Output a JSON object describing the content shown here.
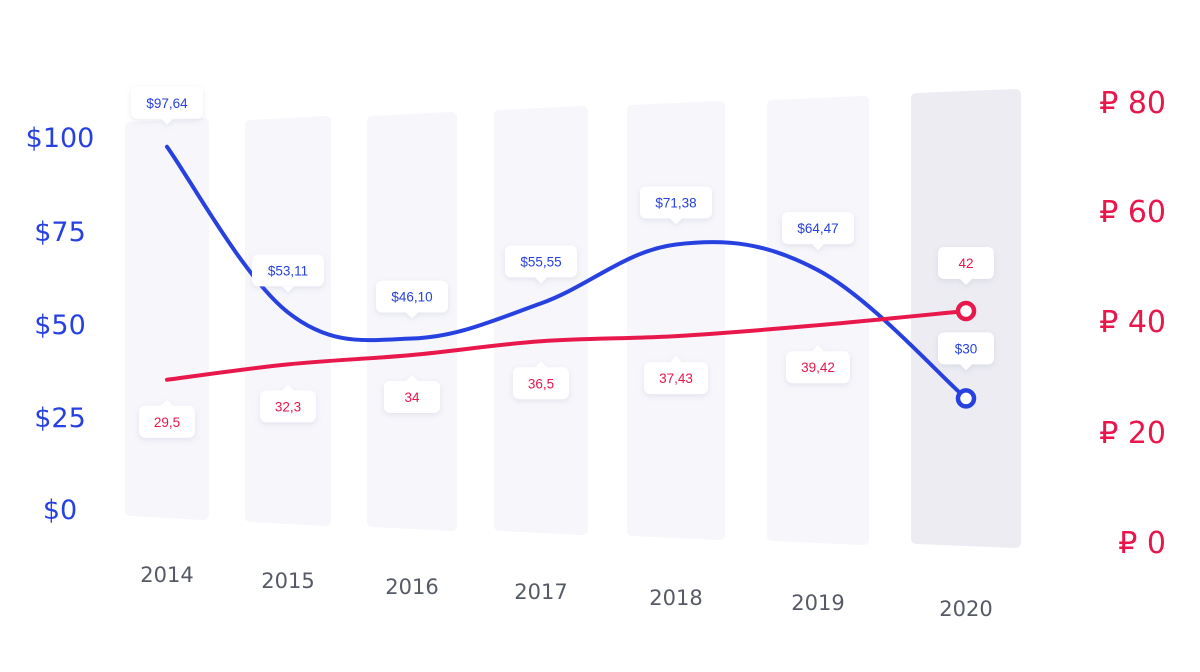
{
  "chart_data": {
    "type": "line",
    "categories": [
      "2014",
      "2015",
      "2016",
      "2017",
      "2018",
      "2019",
      "2020"
    ],
    "y_left": {
      "ticks": [
        "$0",
        "$25",
        "$50",
        "$75",
        "$100"
      ],
      "tick_values": [
        0,
        25,
        50,
        75,
        100
      ],
      "range": [
        0,
        100
      ],
      "color": "#2741e0"
    },
    "y_right": {
      "ticks": [
        "₽ 0",
        "₽ 20",
        "₽ 40",
        "₽ 60",
        "₽ 80"
      ],
      "tick_values": [
        0,
        20,
        40,
        60,
        80
      ],
      "range": [
        0,
        80
      ],
      "color": "#e8174c"
    },
    "series": [
      {
        "axis": "left",
        "color": "#2741e0",
        "values": [
          97.64,
          53.11,
          46.1,
          55.55,
          71.38,
          64.47,
          30
        ],
        "labels": [
          "$97,64",
          "$53,11",
          "$46,10",
          "$55,55",
          "$71,38",
          "$64,47",
          "$30"
        ]
      },
      {
        "axis": "right",
        "color": "#e8174c",
        "values": [
          29.5,
          32.3,
          34,
          36.5,
          37.43,
          39.42,
          42
        ],
        "labels": [
          "29,5",
          "32,3",
          "34",
          "36,5",
          "37,43",
          "39,42",
          "42"
        ]
      }
    ],
    "highlight_category": "2020",
    "column_color": "#f6f6fb",
    "highlight_color": "#ececf2"
  }
}
